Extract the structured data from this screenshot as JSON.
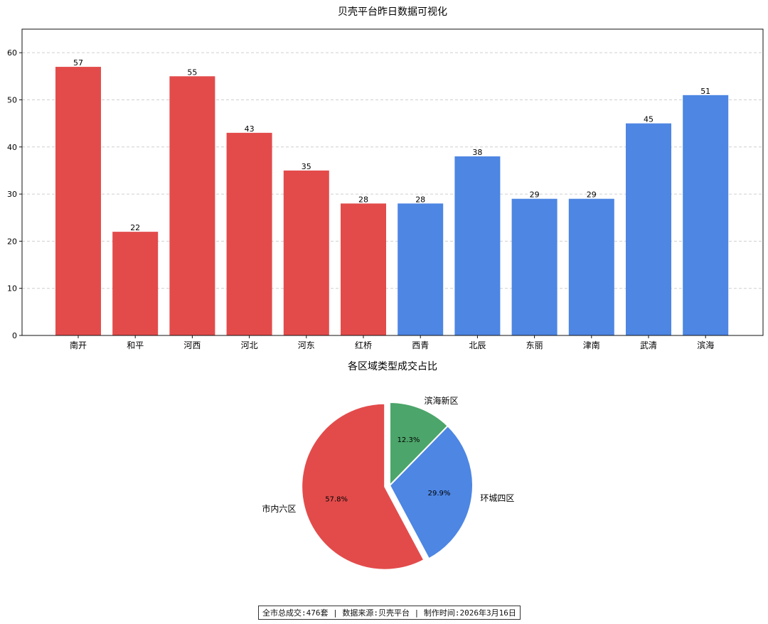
{
  "chart_data": [
    {
      "type": "bar",
      "title": "贝壳平台昨日数据可视化",
      "categories": [
        "南开",
        "和平",
        "河西",
        "河北",
        "河东",
        "红桥",
        "西青",
        "北辰",
        "东丽",
        "津南",
        "武清",
        "滨海"
      ],
      "values": [
        57,
        22,
        55,
        43,
        35,
        28,
        28,
        38,
        29,
        29,
        45,
        51
      ],
      "bar_colors": [
        "#e34b4b",
        "#e34b4b",
        "#e34b4b",
        "#e34b4b",
        "#e34b4b",
        "#e34b4b",
        "#4d86e3",
        "#4d86e3",
        "#4d86e3",
        "#4d86e3",
        "#4d86e3",
        "#4d86e3"
      ],
      "ylim": [
        0,
        65
      ],
      "yticks": [
        0,
        10,
        20,
        30,
        40,
        50,
        60
      ],
      "grid": "y-dashed",
      "data_labels": true
    },
    {
      "type": "pie",
      "title": "各区域类型成交占比",
      "labels": [
        "市内六区",
        "环城四区",
        "滨海新区"
      ],
      "values": [
        57.8,
        29.9,
        12.3
      ],
      "autopct_labels": [
        "57.8%",
        "29.9%",
        "12.3%"
      ],
      "colors": [
        "#e34b4b",
        "#4d86e3",
        "#4ca56a"
      ],
      "exploded": "市内六区"
    }
  ],
  "footer": {
    "text": "全市总成交:476套 | 数据来源:贝壳平台 | 制作时间:2026年3月16日"
  }
}
